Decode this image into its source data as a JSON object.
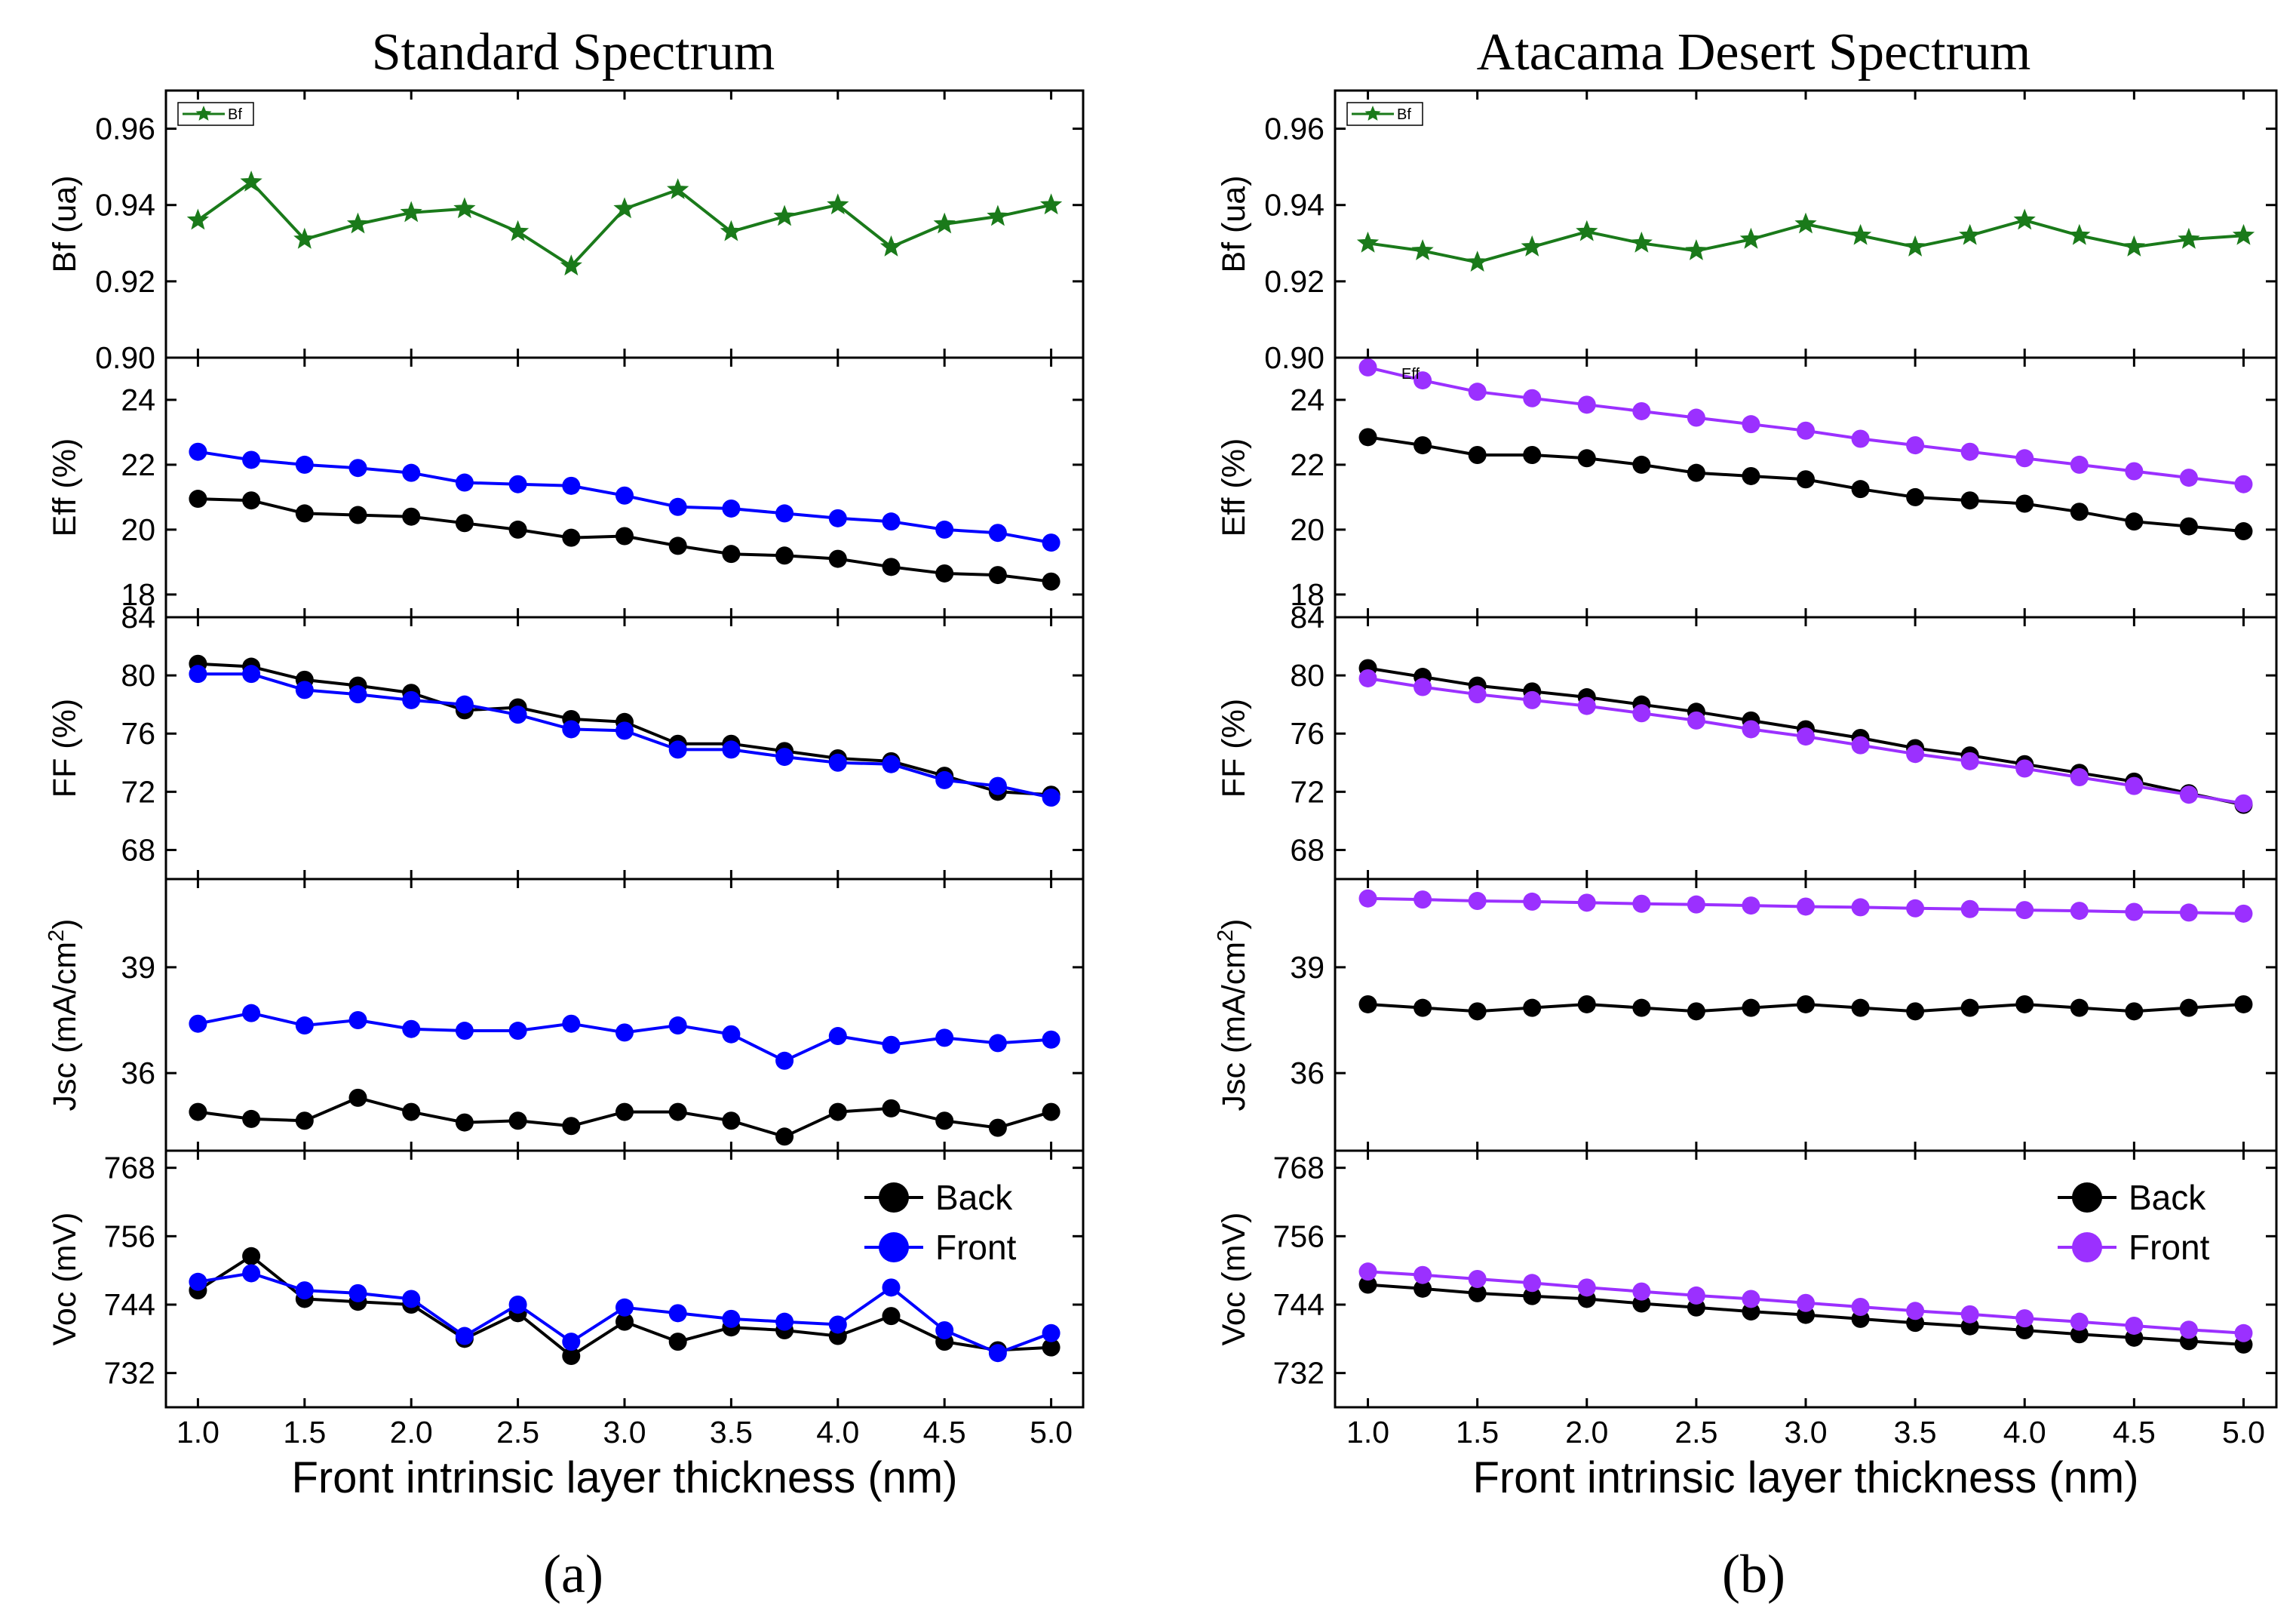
{
  "figure": {
    "label_a": "(a)",
    "label_b": "(b)"
  },
  "colors": {
    "back": "#000000",
    "front_a": "#0000ff",
    "front_b": "#9b30ff",
    "bf": "#1a7a1a"
  },
  "chart_data": [
    {
      "type": "line",
      "title": "Standard Spectrum",
      "panel_label": "(a)",
      "xlabel": "Front intrinsic layer  thickness (nm)",
      "xlim": [
        0.85,
        5.15
      ],
      "x": [
        1.0,
        1.25,
        1.5,
        1.75,
        2.0,
        2.25,
        2.5,
        2.75,
        3.0,
        3.25,
        3.5,
        3.75,
        4.0,
        4.25,
        4.5,
        4.75,
        5.0
      ],
      "xticks": [
        "1.0",
        "1.5",
        "2.0",
        "2.5",
        "3.0",
        "3.5",
        "4.0",
        "4.5",
        "5.0"
      ],
      "legend": {
        "placement": "top-right",
        "entries": [
          "Back",
          "Front"
        ]
      },
      "subplots": [
        {
          "id": "bf",
          "ylabel": "Bf (ua)",
          "ylim": [
            0.9,
            0.97
          ],
          "yticks": [
            "0.90",
            "0.92",
            "0.94",
            "0.96"
          ],
          "small_legend": "Bf",
          "series": [
            {
              "name": "Bf",
              "marker": "star",
              "values": [
                0.936,
                0.946,
                0.931,
                0.935,
                0.938,
                0.939,
                0.933,
                0.924,
                0.939,
                0.944,
                0.933,
                0.937,
                0.94,
                0.929,
                0.935,
                0.937,
                0.94
              ]
            }
          ]
        },
        {
          "id": "eff",
          "ylabel": "Eff (%)",
          "ylim": [
            17.3,
            25.3
          ],
          "yticks": [
            "18",
            "20",
            "22",
            "24"
          ],
          "series": [
            {
              "name": "Back",
              "values": [
                20.95,
                20.9,
                20.5,
                20.45,
                20.4,
                20.2,
                20.0,
                19.75,
                19.8,
                19.5,
                19.25,
                19.2,
                19.1,
                18.85,
                18.65,
                18.6,
                18.4
              ]
            },
            {
              "name": "Front",
              "values": [
                22.4,
                22.15,
                22.0,
                21.9,
                21.75,
                21.45,
                21.4,
                21.35,
                21.05,
                20.7,
                20.65,
                20.5,
                20.35,
                20.25,
                20.0,
                19.9,
                19.6
              ]
            }
          ]
        },
        {
          "id": "ff",
          "ylabel": "FF (%)",
          "ylim": [
            66,
            84
          ],
          "yticks": [
            "68",
            "72",
            "76",
            "80",
            "84"
          ],
          "series": [
            {
              "name": "Back",
              "values": [
                80.8,
                80.6,
                79.7,
                79.3,
                78.8,
                77.6,
                77.8,
                77.0,
                76.8,
                75.3,
                75.3,
                74.8,
                74.3,
                74.1,
                73.1,
                72.0,
                71.8
              ]
            },
            {
              "name": "Front",
              "values": [
                80.1,
                80.1,
                79.0,
                78.7,
                78.3,
                78.0,
                77.3,
                76.3,
                76.2,
                74.9,
                74.9,
                74.4,
                74.0,
                73.9,
                72.8,
                72.4,
                71.6
              ]
            }
          ]
        },
        {
          "id": "jsc",
          "ylabel": "Jsc (mA/cm",
          "ylabel_sup": "2",
          "ylabel_tail": ")",
          "ylim": [
            33.8,
            41.5
          ],
          "yticks": [
            "36",
            "39"
          ],
          "series": [
            {
              "name": "Back",
              "values": [
                34.9,
                34.7,
                34.65,
                35.3,
                34.9,
                34.6,
                34.65,
                34.5,
                34.9,
                34.9,
                34.65,
                34.2,
                34.9,
                35.0,
                34.65,
                34.45,
                34.9
              ]
            },
            {
              "name": "Front",
              "values": [
                37.4,
                37.7,
                37.35,
                37.5,
                37.25,
                37.2,
                37.2,
                37.4,
                37.15,
                37.35,
                37.1,
                36.35,
                37.05,
                36.8,
                37.0,
                36.85,
                36.95
              ]
            }
          ]
        },
        {
          "id": "voc",
          "ylabel": "Voc (mV)",
          "ylim": [
            726,
            771
          ],
          "yticks": [
            "732",
            "744",
            "756",
            "768"
          ],
          "series": [
            {
              "name": "Back",
              "values": [
                746.5,
                752.5,
                745.0,
                744.5,
                744.0,
                738.0,
                742.5,
                735.0,
                741.0,
                737.5,
                740.0,
                739.5,
                738.5,
                742.0,
                737.5,
                736.0,
                736.5
              ]
            },
            {
              "name": "Front",
              "values": [
                748.0,
                749.5,
                746.5,
                746.0,
                745.0,
                738.5,
                744.0,
                737.5,
                743.5,
                742.5,
                741.5,
                741.0,
                740.5,
                747.0,
                739.5,
                735.5,
                739.0
              ]
            }
          ]
        }
      ]
    },
    {
      "type": "line",
      "title": "Atacama Desert Spectrum",
      "panel_label": "(b)",
      "xlabel": "Front intrinsic layer  thickness (nm)",
      "xlim": [
        0.85,
        5.15
      ],
      "x": [
        1.0,
        1.25,
        1.5,
        1.75,
        2.0,
        2.25,
        2.5,
        2.75,
        3.0,
        3.25,
        3.5,
        3.75,
        4.0,
        4.25,
        4.5,
        4.75,
        5.0
      ],
      "xticks": [
        "1.0",
        "1.5",
        "2.0",
        "2.5",
        "3.0",
        "3.5",
        "4.0",
        "4.5",
        "5.0"
      ],
      "legend": {
        "placement": "top-right",
        "entries": [
          "Back",
          "Front"
        ]
      },
      "subplots": [
        {
          "id": "bf",
          "ylabel": "Bf (ua)",
          "ylim": [
            0.9,
            0.97
          ],
          "yticks": [
            "0.90",
            "0.92",
            "0.94",
            "0.96"
          ],
          "small_legend": "Bf",
          "series": [
            {
              "name": "Bf",
              "marker": "star",
              "values": [
                0.93,
                0.928,
                0.925,
                0.929,
                0.933,
                0.93,
                0.928,
                0.931,
                0.935,
                0.932,
                0.929,
                0.932,
                0.936,
                0.932,
                0.929,
                0.931,
                0.932
              ]
            }
          ]
        },
        {
          "id": "eff",
          "ylabel": "Eff (%)",
          "ylim": [
            17.3,
            25.3
          ],
          "yticks": [
            "18",
            "20",
            "22",
            "24"
          ],
          "small_legend": "Eff",
          "series": [
            {
              "name": "Back",
              "values": [
                22.85,
                22.6,
                22.3,
                22.3,
                22.2,
                22.0,
                21.75,
                21.65,
                21.55,
                21.25,
                21.0,
                20.9,
                20.8,
                20.55,
                20.25,
                20.1,
                19.95
              ]
            },
            {
              "name": "Front",
              "values": [
                25.0,
                24.6,
                24.25,
                24.05,
                23.85,
                23.65,
                23.45,
                23.25,
                23.05,
                22.8,
                22.6,
                22.4,
                22.2,
                22.0,
                21.8,
                21.6,
                21.4
              ]
            }
          ]
        },
        {
          "id": "ff",
          "ylabel": "FF (%)",
          "ylim": [
            66,
            84
          ],
          "yticks": [
            "68",
            "72",
            "76",
            "80",
            "84"
          ],
          "series": [
            {
              "name": "Back",
              "values": [
                80.5,
                79.9,
                79.3,
                78.9,
                78.5,
                78.0,
                77.5,
                76.9,
                76.3,
                75.7,
                75.0,
                74.5,
                73.9,
                73.3,
                72.7,
                71.9,
                71.1
              ]
            },
            {
              "name": "Front",
              "values": [
                79.8,
                79.2,
                78.7,
                78.3,
                77.9,
                77.4,
                76.9,
                76.3,
                75.8,
                75.2,
                74.6,
                74.1,
                73.6,
                73.0,
                72.4,
                71.8,
                71.2
              ]
            }
          ]
        },
        {
          "id": "jsc",
          "ylabel": "Jsc (mA/cm",
          "ylabel_sup": "2",
          "ylabel_tail": ")",
          "ylim": [
            33.8,
            41.5
          ],
          "yticks": [
            "36",
            "39"
          ],
          "series": [
            {
              "name": "Back",
              "values": [
                37.95,
                37.85,
                37.75,
                37.85,
                37.95,
                37.85,
                37.75,
                37.85,
                37.95,
                37.85,
                37.75,
                37.85,
                37.95,
                37.85,
                37.75,
                37.85,
                37.95
              ]
            },
            {
              "name": "Front",
              "values": [
                40.95,
                40.92,
                40.88,
                40.86,
                40.83,
                40.8,
                40.78,
                40.75,
                40.72,
                40.7,
                40.67,
                40.65,
                40.62,
                40.6,
                40.57,
                40.55,
                40.52
              ]
            }
          ]
        },
        {
          "id": "voc",
          "ylabel": "Voc (mV)",
          "ylim": [
            726,
            771
          ],
          "yticks": [
            "732",
            "744",
            "756",
            "768"
          ],
          "series": [
            {
              "name": "Back",
              "values": [
                747.5,
                746.8,
                746.0,
                745.5,
                745.0,
                744.2,
                743.5,
                742.8,
                742.2,
                741.5,
                740.8,
                740.2,
                739.5,
                738.8,
                738.2,
                737.6,
                737.0
              ]
            },
            {
              "name": "Front",
              "values": [
                749.8,
                749.2,
                748.5,
                747.8,
                747.0,
                746.3,
                745.6,
                745.0,
                744.3,
                743.6,
                742.9,
                742.3,
                741.6,
                741.0,
                740.3,
                739.6,
                739.0
              ]
            }
          ]
        }
      ]
    }
  ]
}
